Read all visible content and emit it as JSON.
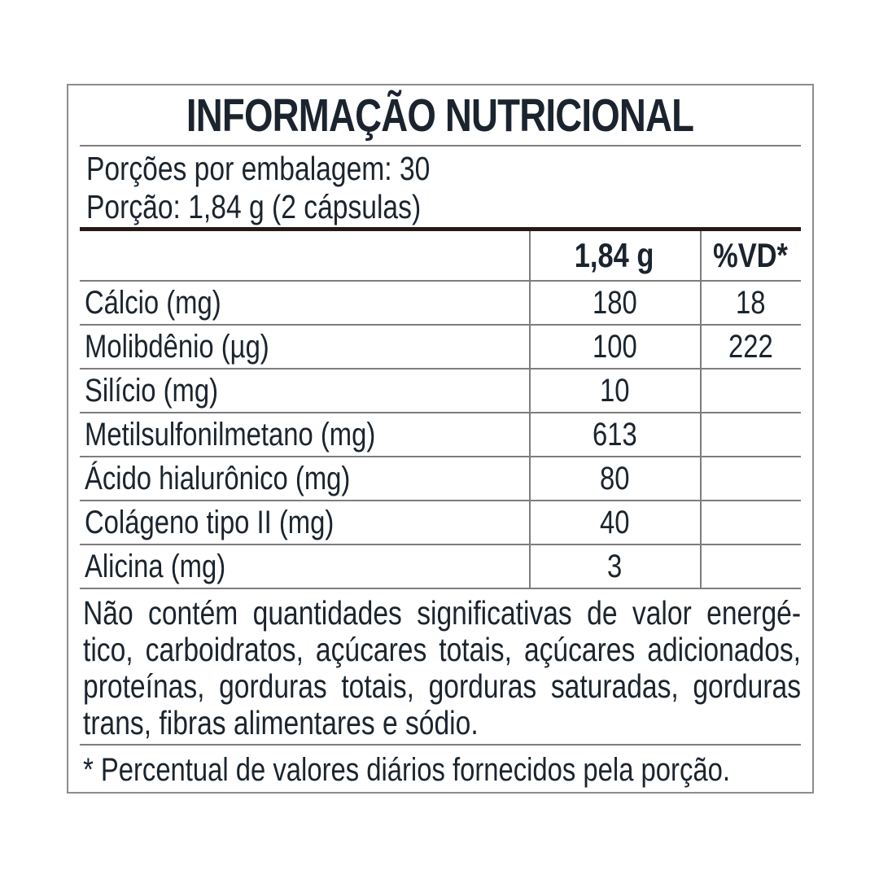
{
  "colors": {
    "text": "#1b242e",
    "rule_gray": "#7d7d7d",
    "outer_border": "#8c8c8c",
    "thick_rule": "#241b16",
    "background": "#ffffff"
  },
  "label": {
    "title": "INFORMAÇÃO NUTRICIONAL",
    "servings_line": "Porções por embalagem: 30",
    "portion_line": "Porção: 1,84 g (2 cápsulas)",
    "columns": {
      "amount": "1,84 g",
      "dv": "%VD*"
    },
    "rows": [
      {
        "name": "Cálcio (mg)",
        "amount": "180",
        "dv": "18"
      },
      {
        "name": "Molibdênio (µg)",
        "amount": "100",
        "dv": "222"
      },
      {
        "name": "Silício (mg)",
        "amount": "10",
        "dv": ""
      },
      {
        "name": "Metilsulfonilmetano (mg)",
        "amount": "613",
        "dv": ""
      },
      {
        "name": "Ácido hialurônico (mg)",
        "amount": "80",
        "dv": ""
      },
      {
        "name": "Colágeno tipo II (mg)",
        "amount": "40",
        "dv": ""
      },
      {
        "name": "Alicina (mg)",
        "amount": "3",
        "dv": ""
      }
    ],
    "disclaimer_lines": [
      "Não contém quantidades significativas de valor energé-",
      "tico, carboidratos, açúcares totais, açúcares adicionados,",
      "proteínas, gorduras totais, gorduras saturadas, gorduras",
      "trans, fibras alimentares e sódio."
    ],
    "footnote": "* Percentual de valores diários fornecidos pela porção."
  }
}
